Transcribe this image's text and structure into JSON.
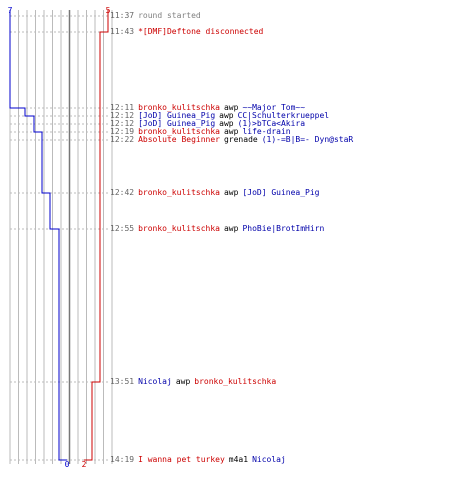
{
  "chart_data": {
    "type": "line",
    "title": "",
    "xlabel": "",
    "ylabel": "",
    "teams": [
      {
        "name": "blue",
        "color": "#0000cc",
        "start_score": 7,
        "end_score": 0
      },
      {
        "name": "red",
        "color": "#cc0000",
        "start_score": 5,
        "end_score": 2
      }
    ],
    "events": [
      {
        "time": "11:37",
        "type": "system",
        "text": "round started",
        "blue_alive": 7,
        "red_alive": 5
      },
      {
        "time": "11:43",
        "type": "system",
        "text": "*[DMF]Deftone disconnected",
        "blue_alive": 7,
        "red_alive": 4
      },
      {
        "time": "12:11",
        "type": "kill",
        "killer": "bronko_kulitschka",
        "killer_team": "red",
        "weapon": "awp",
        "victim": "~~Major Tom~~",
        "victim_team": "blue",
        "blue_alive": 6,
        "red_alive": 4
      },
      {
        "time": "12:12",
        "type": "kill",
        "killer": "[JoD] Guinea_Pig",
        "killer_team": "blue",
        "weapon": "awp",
        "victim": "CC|Schulterkrueppel",
        "victim_team": "blue",
        "blue_alive": 5,
        "red_alive": 4
      },
      {
        "time": "12:12",
        "type": "kill",
        "killer": "[JoD] Guinea_Pig",
        "killer_team": "blue",
        "weapon": "awp",
        "victim": "(1)>bTCa<Akira",
        "victim_team": "blue",
        "blue_alive": 5,
        "red_alive": 4
      },
      {
        "time": "12:19",
        "type": "kill",
        "killer": "bronko_kulitschka",
        "killer_team": "red",
        "weapon": "awp",
        "victim": "life-drain",
        "victim_team": "blue",
        "blue_alive": 4,
        "red_alive": 4
      },
      {
        "time": "12:22",
        "type": "kill",
        "killer": "Absolute Beginner",
        "killer_team": "red",
        "weapon": "grenade",
        "victim": "(1)-=B|B=- Dyn@staR",
        "victim_team": "blue",
        "blue_alive": 4,
        "red_alive": 4
      },
      {
        "time": "12:42",
        "type": "kill",
        "killer": "bronko_kulitschka",
        "killer_team": "red",
        "weapon": "awp",
        "victim": "[JoD] Guinea_Pig",
        "victim_team": "blue",
        "blue_alive": 3,
        "red_alive": 4
      },
      {
        "time": "12:55",
        "type": "kill",
        "killer": "bronko_kulitschka",
        "killer_team": "red",
        "weapon": "awp",
        "victim": "PhoBie|BrotImHirn",
        "victim_team": "blue",
        "blue_alive": 2,
        "red_alive": 4
      },
      {
        "time": "13:51",
        "type": "kill",
        "killer": "Nicolaj",
        "killer_team": "blue",
        "weapon": "awp",
        "victim": "bronko_kulitschka",
        "victim_team": "red",
        "blue_alive": 2,
        "red_alive": 3
      },
      {
        "time": "14:19",
        "type": "kill",
        "killer": "I wanna pet turkey",
        "killer_team": "red",
        "weapon": "m4a1",
        "victim": "Nicolaj",
        "victim_team": "blue",
        "blue_alive": 0,
        "red_alive": 2
      }
    ]
  },
  "colors": {
    "red": "#cc0000",
    "blue": "#0000aa",
    "system": "#808080",
    "grid": "#bbbbbb",
    "grid_center": "#777777"
  }
}
